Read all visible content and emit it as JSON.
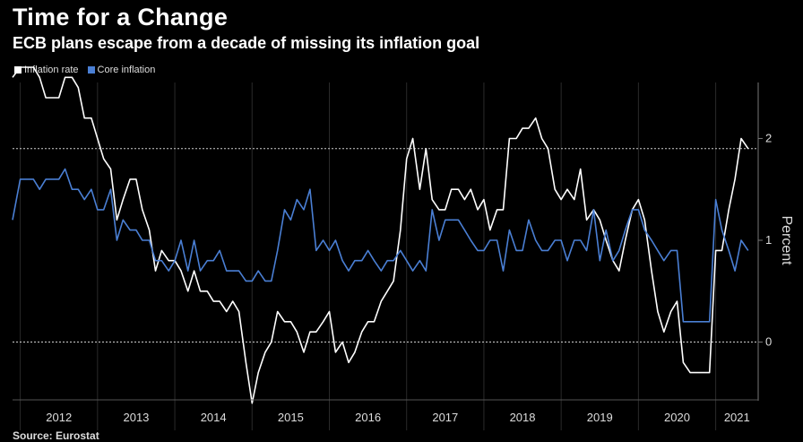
{
  "title": "Time for a Change",
  "subtitle": "ECB plans escape from a decade of missing its inflation goal",
  "source": "Source: Eurostat",
  "colors": {
    "background": "#000000",
    "inflation": "#ffffff",
    "core": "#4a7fd4",
    "axis": "#666666"
  },
  "chart_data": {
    "type": "line",
    "title": "Time for a Change",
    "subtitle": "ECB plans escape from a decade of missing its inflation goal",
    "ylabel": "Percent",
    "xlabel": "",
    "ylim": [
      -0.55,
      2.55
    ],
    "yticks": [
      0,
      1,
      2
    ],
    "reference_lines": [
      0,
      1.9
    ],
    "x_tick_labels": [
      "2012",
      "2013",
      "2014",
      "2015",
      "2016",
      "2017",
      "2018",
      "2019",
      "2020",
      "2021"
    ],
    "legend": [
      "Inflation rate",
      "Core inflation"
    ],
    "legend_position": "top-left",
    "series": [
      {
        "name": "Inflation rate",
        "color": "#ffffff",
        "x": [
          2011.9,
          2012.0,
          2012.08,
          2012.17,
          2012.25,
          2012.33,
          2012.42,
          2012.5,
          2012.58,
          2012.67,
          2012.75,
          2012.83,
          2012.92,
          2013.0,
          2013.08,
          2013.17,
          2013.25,
          2013.33,
          2013.42,
          2013.5,
          2013.58,
          2013.67,
          2013.75,
          2013.83,
          2013.92,
          2014.0,
          2014.08,
          2014.17,
          2014.25,
          2014.33,
          2014.42,
          2014.5,
          2014.58,
          2014.67,
          2014.75,
          2014.83,
          2014.92,
          2015.0,
          2015.08,
          2015.17,
          2015.25,
          2015.33,
          2015.42,
          2015.5,
          2015.58,
          2015.67,
          2015.75,
          2015.83,
          2015.92,
          2016.0,
          2016.08,
          2016.17,
          2016.25,
          2016.33,
          2016.42,
          2016.5,
          2016.58,
          2016.67,
          2016.75,
          2016.83,
          2016.92,
          2017.0,
          2017.08,
          2017.17,
          2017.25,
          2017.33,
          2017.42,
          2017.5,
          2017.58,
          2017.67,
          2017.75,
          2017.83,
          2017.92,
          2018.0,
          2018.08,
          2018.17,
          2018.25,
          2018.33,
          2018.42,
          2018.5,
          2018.58,
          2018.67,
          2018.75,
          2018.83,
          2018.92,
          2019.0,
          2019.08,
          2019.17,
          2019.25,
          2019.33,
          2019.42,
          2019.5,
          2019.58,
          2019.67,
          2019.75,
          2019.83,
          2019.92,
          2020.0,
          2020.08,
          2020.17,
          2020.25,
          2020.33,
          2020.42,
          2020.5,
          2020.58,
          2020.67,
          2020.75,
          2020.83,
          2020.92,
          2021.0,
          2021.08,
          2021.17,
          2021.25,
          2021.33,
          2021.42
        ],
        "values": [
          2.6,
          2.7,
          2.7,
          2.7,
          2.6,
          2.4,
          2.4,
          2.4,
          2.6,
          2.6,
          2.5,
          2.2,
          2.2,
          2.0,
          1.8,
          1.7,
          1.2,
          1.4,
          1.6,
          1.6,
          1.3,
          1.1,
          0.7,
          0.9,
          0.8,
          0.8,
          0.7,
          0.5,
          0.7,
          0.5,
          0.5,
          0.4,
          0.4,
          0.3,
          0.4,
          0.3,
          -0.2,
          -0.6,
          -0.3,
          -0.1,
          0.0,
          0.3,
          0.2,
          0.2,
          0.1,
          -0.1,
          0.1,
          0.1,
          0.2,
          0.3,
          -0.1,
          0.0,
          -0.2,
          -0.1,
          0.1,
          0.2,
          0.2,
          0.4,
          0.5,
          0.6,
          1.1,
          1.8,
          2.0,
          1.5,
          1.9,
          1.4,
          1.3,
          1.3,
          1.5,
          1.5,
          1.4,
          1.5,
          1.3,
          1.4,
          1.1,
          1.3,
          1.3,
          2.0,
          2.0,
          2.1,
          2.1,
          2.2,
          2.0,
          1.9,
          1.5,
          1.4,
          1.5,
          1.4,
          1.7,
          1.2,
          1.3,
          1.2,
          1.0,
          0.8,
          0.7,
          1.0,
          1.3,
          1.4,
          1.2,
          0.7,
          0.3,
          0.1,
          0.3,
          0.4,
          -0.2,
          -0.3,
          -0.3,
          -0.3,
          -0.3,
          0.9,
          0.9,
          1.3,
          1.6,
          2.0,
          1.9
        ]
      },
      {
        "name": "Core inflation",
        "color": "#4a7fd4",
        "x": [
          2011.9,
          2012.0,
          2012.08,
          2012.17,
          2012.25,
          2012.33,
          2012.42,
          2012.5,
          2012.58,
          2012.67,
          2012.75,
          2012.83,
          2012.92,
          2013.0,
          2013.08,
          2013.17,
          2013.25,
          2013.33,
          2013.42,
          2013.5,
          2013.58,
          2013.67,
          2013.75,
          2013.83,
          2013.92,
          2014.0,
          2014.08,
          2014.17,
          2014.25,
          2014.33,
          2014.42,
          2014.5,
          2014.58,
          2014.67,
          2014.75,
          2014.83,
          2014.92,
          2015.0,
          2015.08,
          2015.17,
          2015.25,
          2015.33,
          2015.42,
          2015.5,
          2015.58,
          2015.67,
          2015.75,
          2015.83,
          2015.92,
          2016.0,
          2016.08,
          2016.17,
          2016.25,
          2016.33,
          2016.42,
          2016.5,
          2016.58,
          2016.67,
          2016.75,
          2016.83,
          2016.92,
          2017.0,
          2017.08,
          2017.17,
          2017.25,
          2017.33,
          2017.42,
          2017.5,
          2017.58,
          2017.67,
          2017.75,
          2017.83,
          2017.92,
          2018.0,
          2018.08,
          2018.17,
          2018.25,
          2018.33,
          2018.42,
          2018.5,
          2018.58,
          2018.67,
          2018.75,
          2018.83,
          2018.92,
          2019.0,
          2019.08,
          2019.17,
          2019.25,
          2019.33,
          2019.42,
          2019.5,
          2019.58,
          2019.67,
          2019.75,
          2019.83,
          2019.92,
          2020.0,
          2020.08,
          2020.17,
          2020.25,
          2020.33,
          2020.42,
          2020.5,
          2020.58,
          2020.67,
          2020.75,
          2020.83,
          2020.92,
          2021.0,
          2021.08,
          2021.17,
          2021.25,
          2021.33,
          2021.42
        ],
        "values": [
          1.2,
          1.6,
          1.6,
          1.6,
          1.5,
          1.6,
          1.6,
          1.6,
          1.7,
          1.5,
          1.5,
          1.4,
          1.5,
          1.3,
          1.3,
          1.5,
          1.0,
          1.2,
          1.1,
          1.1,
          1.0,
          1.0,
          0.8,
          0.8,
          0.7,
          0.8,
          1.0,
          0.7,
          1.0,
          0.7,
          0.8,
          0.8,
          0.9,
          0.7,
          0.7,
          0.7,
          0.6,
          0.6,
          0.7,
          0.6,
          0.6,
          0.9,
          1.3,
          1.2,
          1.4,
          1.3,
          1.5,
          0.9,
          1.0,
          0.9,
          1.0,
          0.8,
          0.7,
          0.8,
          0.8,
          0.9,
          0.8,
          0.7,
          0.8,
          0.8,
          0.9,
          0.8,
          0.7,
          0.8,
          0.7,
          1.3,
          1.0,
          1.2,
          1.2,
          1.2,
          1.1,
          1.0,
          0.9,
          0.9,
          1.0,
          1.0,
          0.7,
          1.1,
          0.9,
          0.9,
          1.2,
          1.0,
          0.9,
          0.9,
          1.0,
          1.0,
          0.8,
          1.0,
          1.0,
          0.9,
          1.3,
          0.8,
          1.1,
          0.8,
          0.9,
          1.1,
          1.3,
          1.3,
          1.1,
          1.0,
          0.9,
          0.8,
          0.9,
          0.9,
          0.2,
          0.2,
          0.2,
          0.2,
          0.2,
          1.4,
          1.1,
          0.9,
          0.7,
          1.0,
          0.9
        ]
      }
    ]
  }
}
